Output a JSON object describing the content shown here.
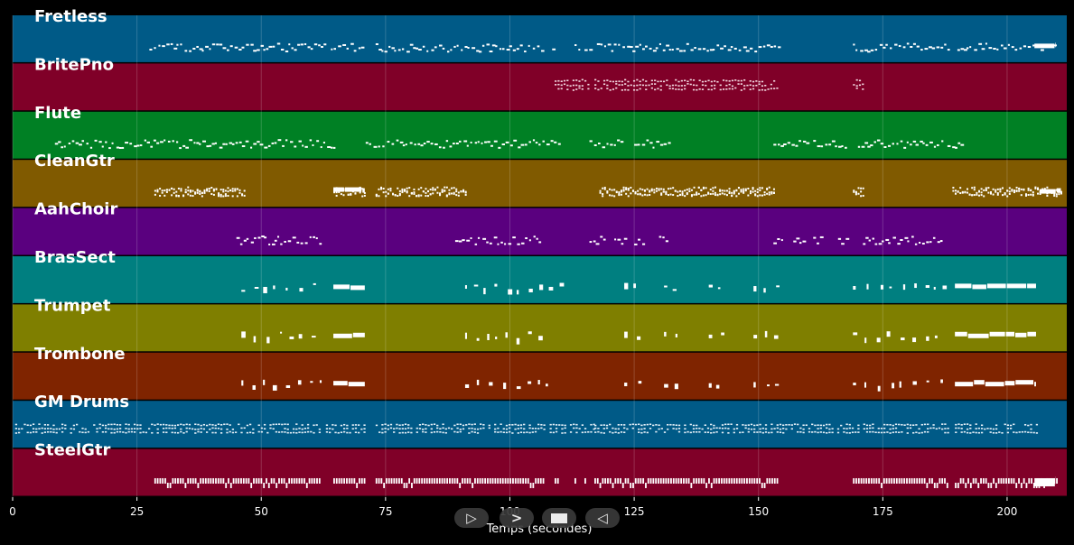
{
  "chart_data": {
    "type": "piano-roll",
    "xlabel": "Temps (secondes)",
    "xlim": [
      0,
      212
    ],
    "xticks": [
      0,
      25,
      50,
      75,
      100,
      125,
      150,
      175,
      200
    ],
    "grid": true,
    "tracks": [
      {
        "name": "Fretless",
        "color": "#005a87",
        "style": "dots",
        "segments": [
          [
            27.5,
            63
          ],
          [
            64,
            71
          ],
          [
            73,
            107
          ],
          [
            108.5,
            108.8
          ],
          [
            113,
            114
          ],
          [
            115,
            116.5
          ],
          [
            117.5,
            154
          ],
          [
            169,
            188
          ],
          [
            190,
            210
          ]
        ],
        "sustain": [
          [
            205.5,
            210
          ]
        ]
      },
      {
        "name": "BritePno",
        "color": "#800028",
        "style": "chord",
        "segments": [
          [
            109,
            116
          ],
          [
            117,
            154
          ],
          [
            169,
            171
          ]
        ],
        "sustain": []
      },
      {
        "name": "Flute",
        "color": "#008024",
        "style": "dots",
        "segments": [
          [
            8.5,
            65
          ],
          [
            71,
            110
          ],
          [
            116,
            123
          ],
          [
            125,
            132
          ],
          [
            153,
            160
          ],
          [
            161,
            168
          ],
          [
            170,
            187
          ],
          [
            188,
            191
          ]
        ],
        "sustain": []
      },
      {
        "name": "CleanGtr",
        "color": "#805a00",
        "style": "dense",
        "segments": [
          [
            28.5,
            46.5
          ],
          [
            64.5,
            71
          ],
          [
            73,
            91
          ],
          [
            118,
            153
          ],
          [
            169,
            171
          ],
          [
            189,
            211
          ]
        ],
        "sustain": [
          [
            64.5,
            71
          ],
          [
            206.5,
            211
          ]
        ]
      },
      {
        "name": "AahChoir",
        "color": "#5a007f",
        "style": "dots",
        "segments": [
          [
            45,
            62
          ],
          [
            89,
            106
          ],
          [
            116,
            119
          ],
          [
            121,
            123
          ],
          [
            125,
            127
          ],
          [
            130,
            132
          ],
          [
            153,
            155
          ],
          [
            157,
            159
          ],
          [
            161,
            163
          ],
          [
            166,
            168
          ],
          [
            171,
            187
          ]
        ],
        "sustain": []
      },
      {
        "name": "BrasSect",
        "color": "#007f80",
        "style": "brass",
        "segments": [
          [
            46,
            62
          ],
          [
            91,
            108
          ],
          [
            110,
            112
          ],
          [
            123,
            127
          ],
          [
            131,
            134
          ],
          [
            140,
            144
          ],
          [
            149,
            154
          ],
          [
            169,
            188
          ]
        ],
        "sustain": [
          [
            64.5,
            71
          ],
          [
            189.5,
            206
          ]
        ]
      },
      {
        "name": "Trumpet",
        "color": "#7f7f00",
        "style": "brass",
        "segments": [
          [
            46,
            62
          ],
          [
            91,
            108
          ],
          [
            123,
            127
          ],
          [
            131,
            134
          ],
          [
            140,
            144
          ],
          [
            149,
            154
          ],
          [
            169,
            188
          ]
        ],
        "sustain": [
          [
            64.5,
            71
          ],
          [
            189.5,
            206
          ]
        ]
      },
      {
        "name": "Trombone",
        "color": "#7f2400",
        "style": "brass",
        "segments": [
          [
            46,
            62
          ],
          [
            91,
            108
          ],
          [
            123,
            127
          ],
          [
            131,
            134
          ],
          [
            140,
            144
          ],
          [
            149,
            154
          ],
          [
            169,
            188
          ]
        ],
        "sustain": [
          [
            64.5,
            71
          ],
          [
            189.5,
            206
          ]
        ]
      },
      {
        "name": "GM Drums",
        "color": "#005a87",
        "style": "drums",
        "segments": [
          [
            0.5,
            62
          ],
          [
            63,
            71
          ],
          [
            73,
            107
          ],
          [
            108,
            117
          ],
          [
            117,
            188
          ],
          [
            189.5,
            206
          ]
        ],
        "sustain": []
      },
      {
        "name": "SteelGtr",
        "color": "#800028",
        "style": "steel",
        "segments": [
          [
            28.5,
            62
          ],
          [
            64.5,
            71
          ],
          [
            73,
            107
          ],
          [
            109,
            110
          ],
          [
            113,
            113.5
          ],
          [
            115,
            115.5
          ],
          [
            117,
            154
          ],
          [
            169,
            188
          ],
          [
            189.5,
            210
          ]
        ],
        "sustain": [
          [
            205.5,
            210
          ]
        ]
      }
    ]
  },
  "controls": [
    {
      "name": "play-button",
      "glyph": "▷"
    },
    {
      "name": "forward-button",
      "glyph": ">"
    },
    {
      "name": "stop-button",
      "glyph": "stop"
    },
    {
      "name": "back-button",
      "glyph": "◁"
    }
  ]
}
